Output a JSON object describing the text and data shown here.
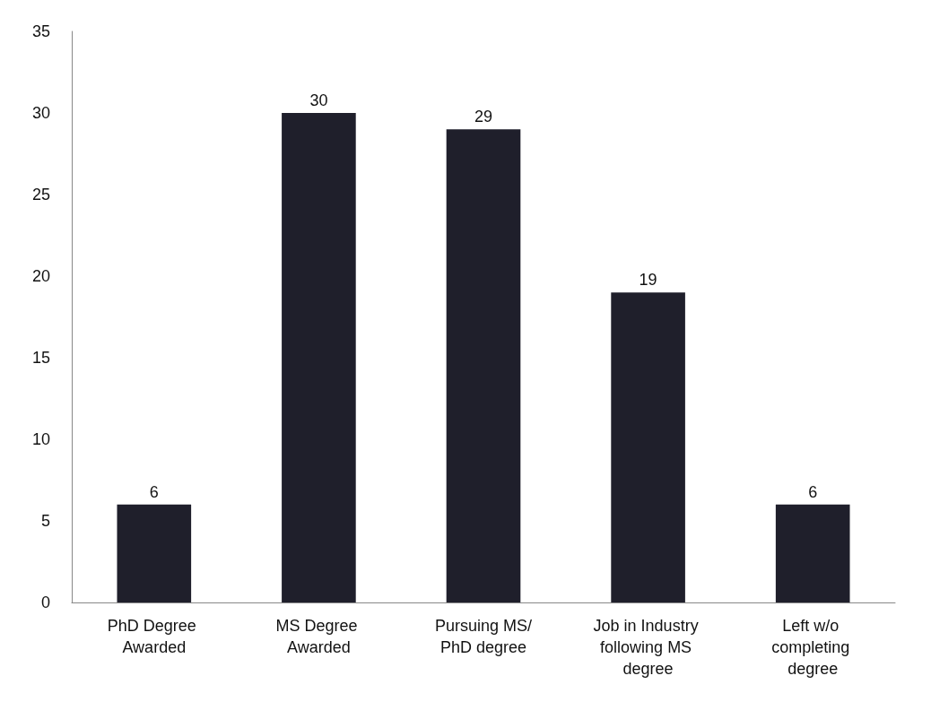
{
  "chart_data": {
    "type": "bar",
    "categories": [
      "PhD Degree Awarded",
      "MS Degree Awarded",
      "Pursuing MS/PhD degree",
      "Job in Industry following MS degree",
      "Left w/o completing degree"
    ],
    "values": [
      6,
      30,
      29,
      19,
      6
    ],
    "color": "#1f1f2b",
    "ylim": [
      0,
      35
    ],
    "yticks": [
      0,
      5,
      10,
      15,
      20,
      25,
      30,
      35
    ],
    "grid": false,
    "data_labels": true
  }
}
